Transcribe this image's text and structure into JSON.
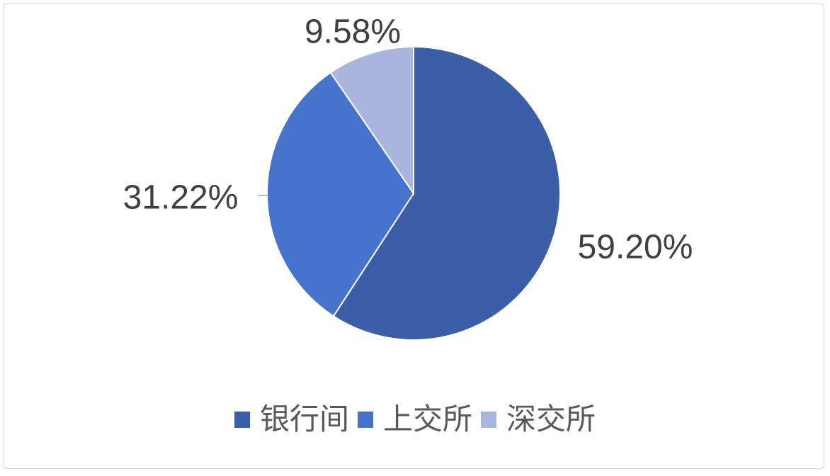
{
  "chart_data": {
    "type": "pie",
    "categories": [
      "银行间",
      "上交所",
      "深交所"
    ],
    "values": [
      59.2,
      31.22,
      9.58
    ],
    "labels": [
      "59.20%",
      "31.22%",
      "9.58%"
    ],
    "colors": [
      "#3A5FA8",
      "#4673CB",
      "#A8B6DE"
    ],
    "start_angle": "12 o'clock",
    "direction": "clockwise",
    "legend": "bottom",
    "label_color": "#404040"
  }
}
